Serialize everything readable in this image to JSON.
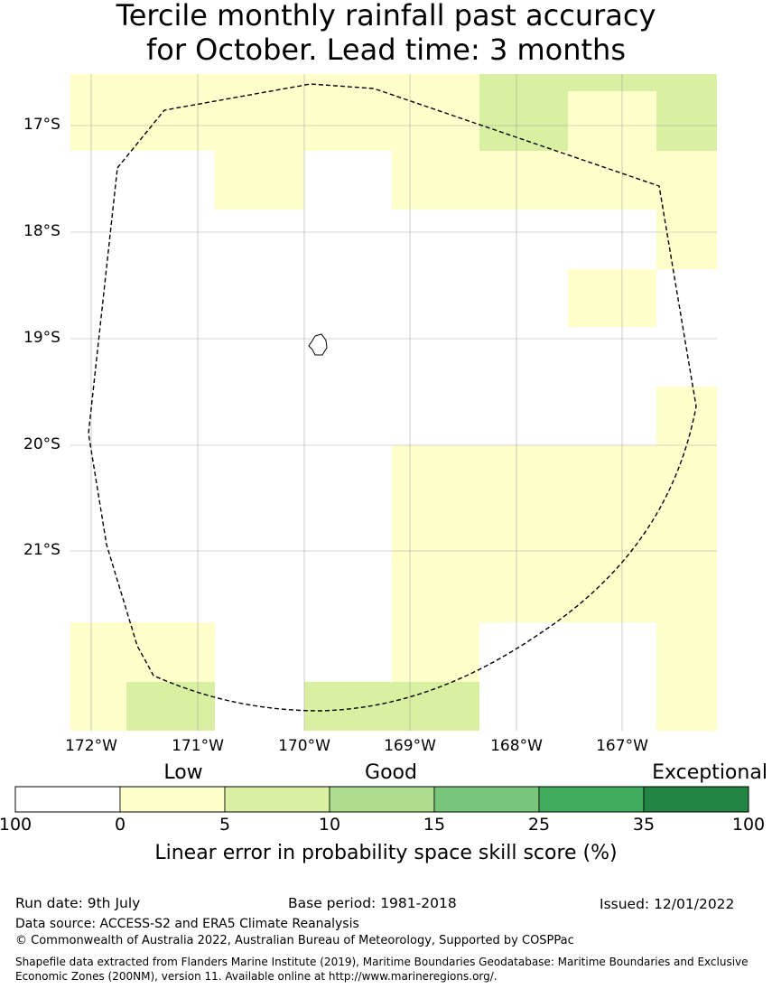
{
  "title_line1": "Tercile monthly rainfall past accuracy",
  "title_line2": "for October. Lead time: 3 months",
  "map": {
    "lat_labels": [
      "17°S",
      "18°S",
      "19°S",
      "20°S",
      "21°S"
    ],
    "lon_labels": [
      "172°W",
      "171°W",
      "170°W",
      "169°W",
      "168°W",
      "167°W"
    ],
    "cell_colors": {
      "low": "#ffffcc",
      "good": "#d9f0a3",
      "none": "#ffffff"
    },
    "skill_cells_rows": [
      {
        "lat": "16.5-17.25°S",
        "cells": [
          "low",
          "low",
          "low",
          "low",
          "good",
          "good",
          "low",
          "good"
        ]
      },
      {
        "lat": "17.25-17.8°S",
        "cells": [
          "none",
          "low",
          "none",
          "low",
          "low",
          "low",
          "low",
          "low"
        ]
      },
      {
        "lat": "17.8-18.35°S",
        "cells": [
          "none",
          "none",
          "none",
          "none",
          "none",
          "none",
          "low",
          "low"
        ]
      },
      {
        "lat": "18.35-18.9°S",
        "cells": [
          "none",
          "none",
          "none",
          "none",
          "none",
          "low",
          "none",
          "none"
        ]
      },
      {
        "lat": "19.45-20.0°S",
        "cells": [
          "none",
          "none",
          "none",
          "none",
          "none",
          "none",
          "low",
          "none"
        ]
      },
      {
        "lat": "20.0-20.55°S",
        "cells": [
          "none",
          "none",
          "none",
          "low",
          "low",
          "low",
          "low",
          "none"
        ]
      },
      {
        "lat": "20.55-21.1°S",
        "cells": [
          "none",
          "none",
          "none",
          "low",
          "low",
          "low",
          "none",
          "low"
        ]
      },
      {
        "lat": "21.1-21.65°S",
        "cells": [
          "none",
          "none",
          "none",
          "low",
          "low",
          "low",
          "low",
          "low"
        ]
      },
      {
        "lat": "21.65-22.2°S",
        "cells": [
          "low",
          "none",
          "none",
          "low",
          "none",
          "none",
          "low",
          "low"
        ]
      },
      {
        "lat": "22.2-22.7°S",
        "cells": [
          "low",
          "good",
          "good",
          "good",
          "none",
          "none",
          "none",
          "low"
        ]
      }
    ],
    "boundary_style": "dashed black EEZ outline",
    "island": "Niue outline"
  },
  "legend": {
    "categories": [
      "Low",
      "Good",
      "Exceptional"
    ],
    "colors": [
      "#ffffff",
      "#ffffcc",
      "#d9f0a3",
      "#addd8e",
      "#78c679",
      "#41ab5d",
      "#238443"
    ],
    "ticks": [
      "100",
      "0",
      "5",
      "10",
      "15",
      "25",
      "35",
      "100"
    ],
    "title": "Linear error in probability space skill score (%)"
  },
  "footer": {
    "run_date": "Run date: 9th July",
    "base_period": "Base period: 1981-2018",
    "issued": "Issued: 12/01/2022",
    "data_source": "Data source: ACCESS-S2 and ERA5 Climate Reanalysis",
    "copyright": "© Commonwealth of Australia 2022, Australian Bureau of Meteorology, Supported by COSPPac",
    "shapefile_line1": "Shapefile data extracted from Flanders Marine Institute (2019), Maritime Boundaries Geodatabase: Maritime Boundaries and Exclusive",
    "shapefile_line2": "Economic Zones (200NM), version 11. Available online at http://www.marineregions.org/."
  }
}
